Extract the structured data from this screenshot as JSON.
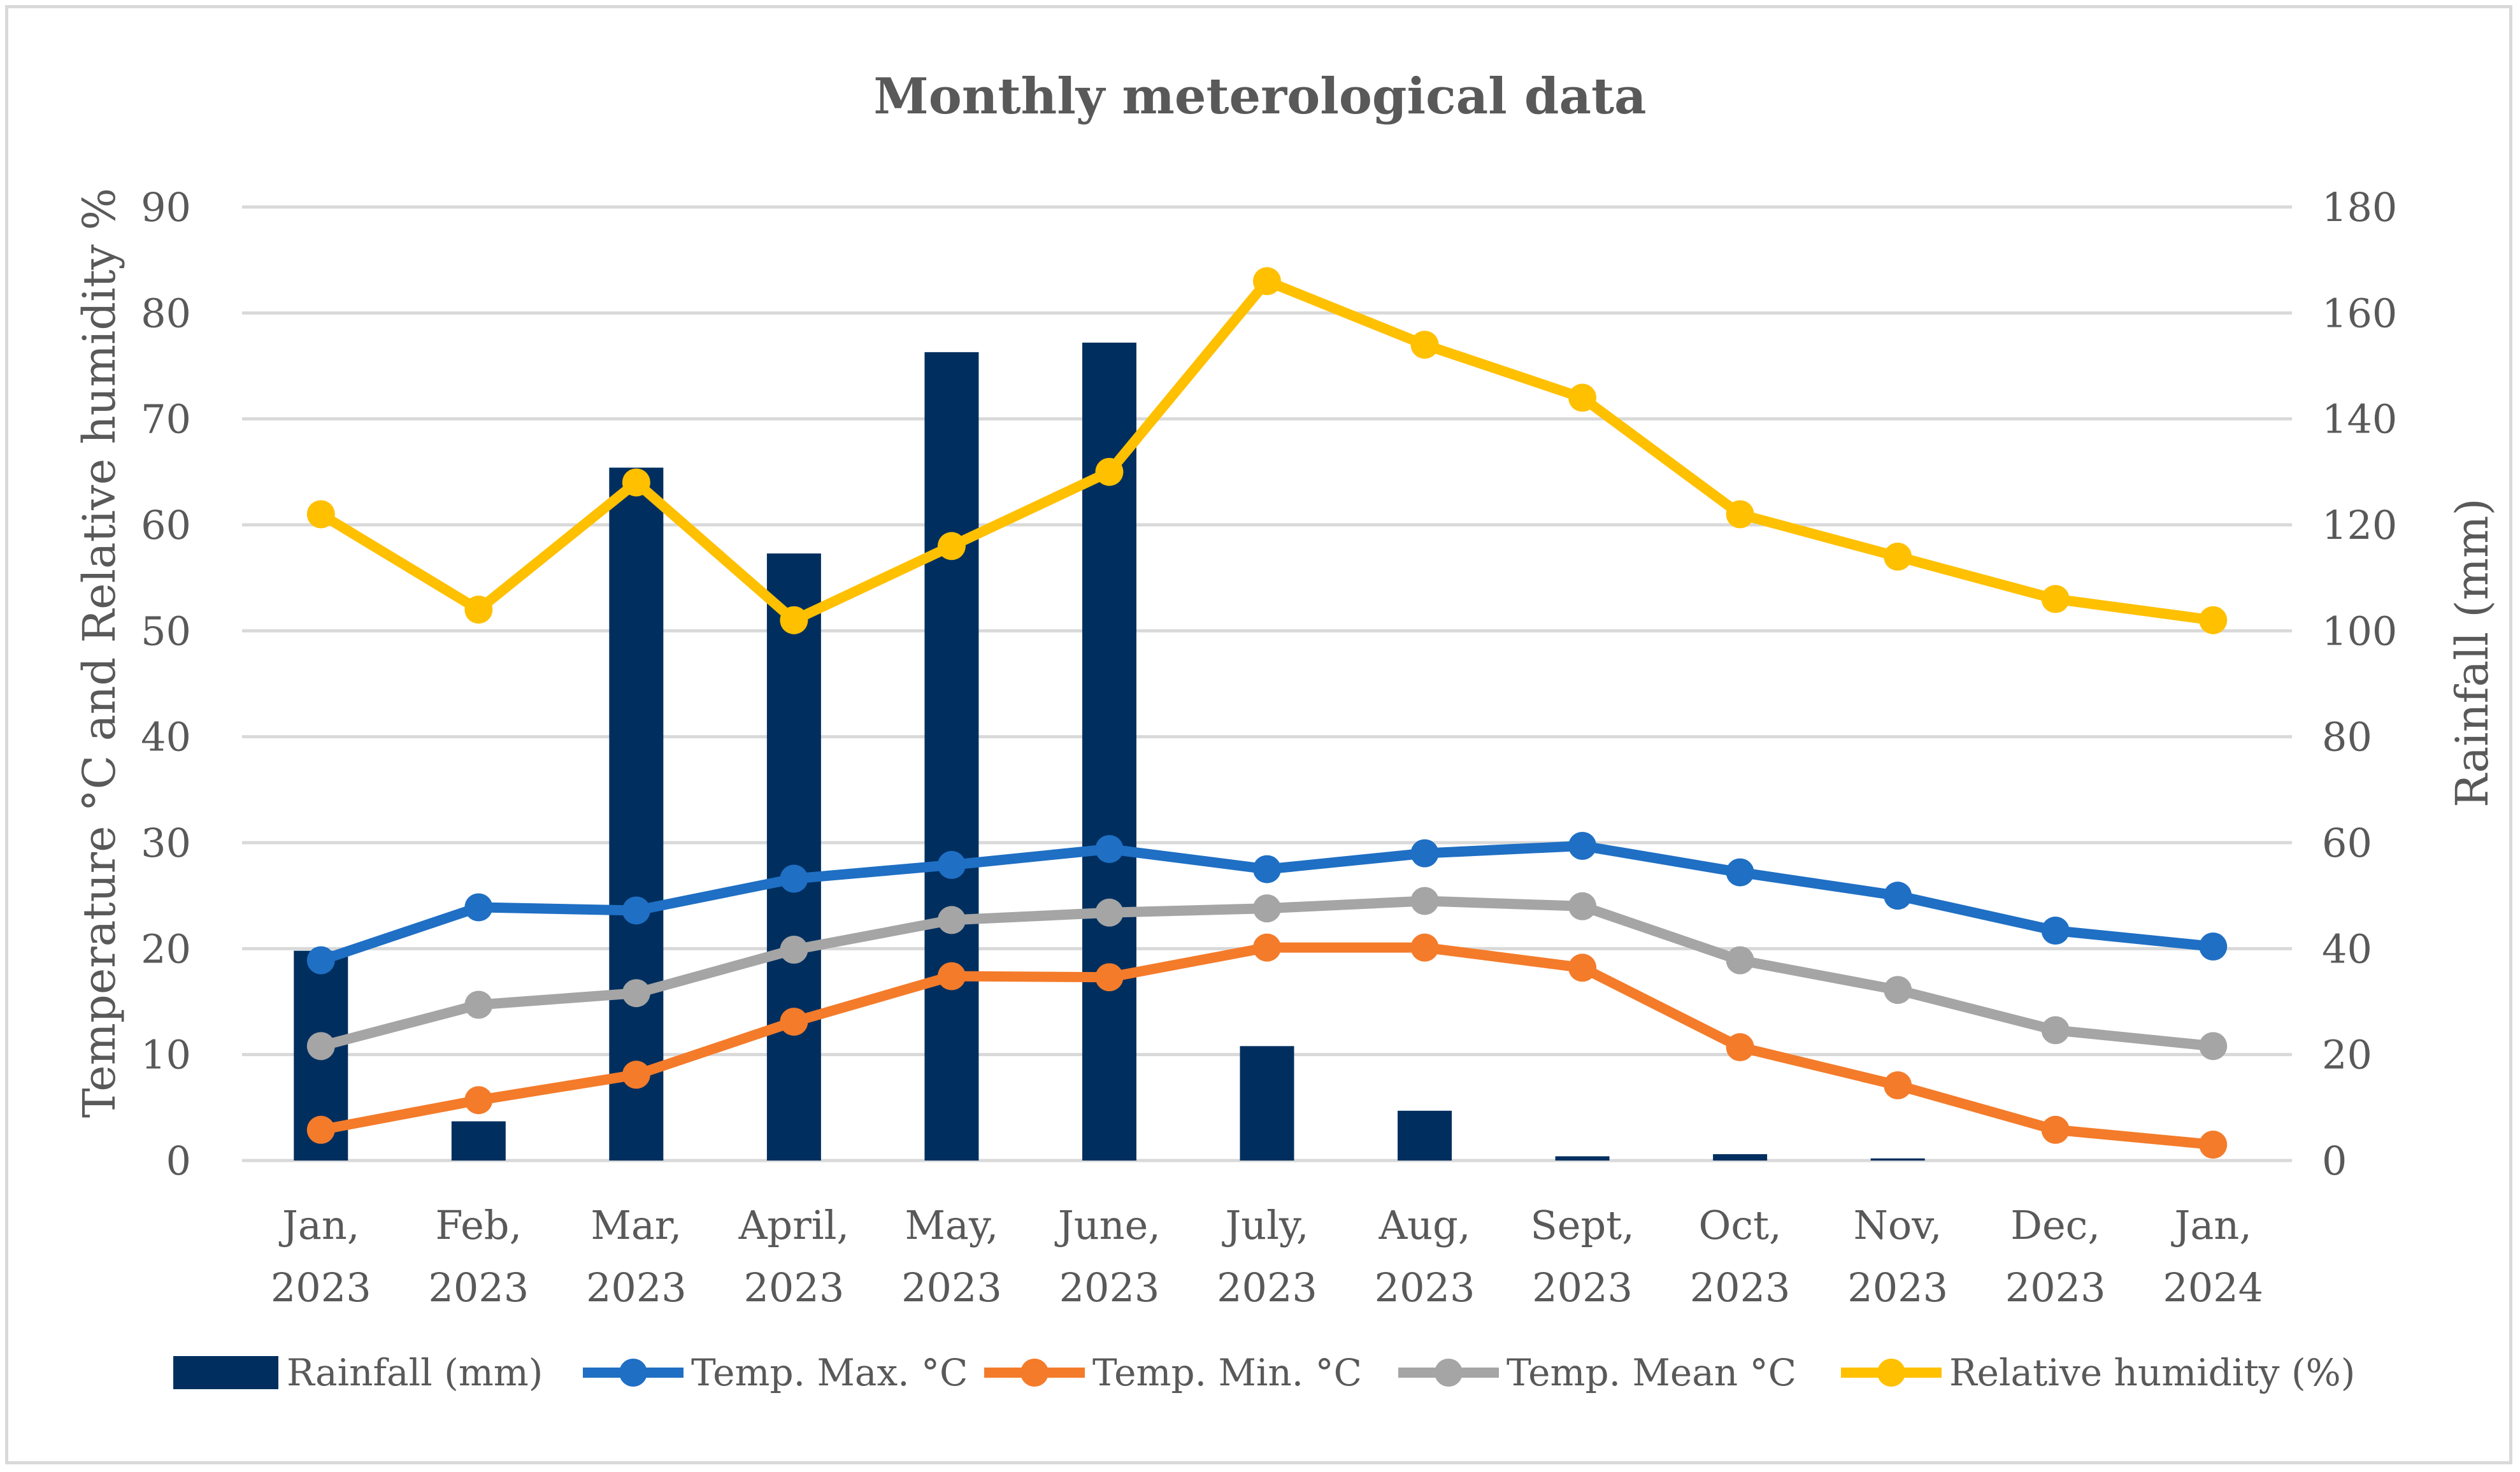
{
  "chart_data": {
    "type": "bar+line",
    "title": "Monthly meterological data",
    "y_left_label": "Temperature °C and Relative humidity %",
    "y_right_label": "Rainfall (mm)",
    "y_left_lim": [
      0,
      90
    ],
    "y_right_lim": [
      0,
      180
    ],
    "y_left_ticks": [
      "0",
      "10",
      "20",
      "30",
      "40",
      "50",
      "60",
      "70",
      "80",
      "90"
    ],
    "y_right_ticks": [
      "0",
      "20",
      "40",
      "60",
      "80",
      "100",
      "120",
      "140",
      "160",
      "180"
    ],
    "categories": [
      [
        "Jan,",
        "2023"
      ],
      [
        "Feb,",
        "2023"
      ],
      [
        "Mar,",
        "2023"
      ],
      [
        "April,",
        "2023"
      ],
      [
        "May,",
        "2023"
      ],
      [
        "June,",
        "2023"
      ],
      [
        "July,",
        "2023"
      ],
      [
        "Aug,",
        "2023"
      ],
      [
        "Sept,",
        "2023"
      ],
      [
        "Oct,",
        "2023"
      ],
      [
        "Nov,",
        "2023"
      ],
      [
        "Dec,",
        "2023"
      ],
      [
        "Jan,",
        "2024"
      ]
    ],
    "bar_series": {
      "name": "Rainfall (mm)",
      "axis": "right",
      "color": "#002f5f",
      "values": [
        39.6,
        7.4,
        130.8,
        114.6,
        152.6,
        154.4,
        21.6,
        9.4,
        0.8,
        1.2,
        0.4,
        0,
        0
      ]
    },
    "line_series": [
      {
        "name": "Temp. Max. °C",
        "axis": "left",
        "color": "#1f6fc4",
        "values": [
          18.9,
          23.9,
          23.6,
          26.6,
          27.9,
          29.4,
          27.5,
          29.0,
          29.7,
          27.2,
          25.0,
          21.7,
          20.2
        ]
      },
      {
        "name": "Temp. Min. °C",
        "axis": "left",
        "color": "#f47b2a",
        "values": [
          2.9,
          5.7,
          8.1,
          13.1,
          17.4,
          17.3,
          20.1,
          20.1,
          18.2,
          10.7,
          7.1,
          2.9,
          1.5
        ]
      },
      {
        "name": "Temp. Mean  °C",
        "axis": "left",
        "color": "#a5a5a5",
        "values": [
          10.8,
          14.7,
          15.8,
          19.9,
          22.7,
          23.4,
          23.8,
          24.5,
          24.0,
          18.9,
          16.1,
          12.3,
          10.8
        ]
      },
      {
        "name": "Relative humidity (%)",
        "axis": "left",
        "color": "#ffc000",
        "values": [
          61,
          52,
          64,
          51,
          58,
          65,
          83,
          77,
          72,
          61,
          57,
          53,
          51
        ]
      }
    ],
    "legend_position": "bottom",
    "grid": true
  }
}
